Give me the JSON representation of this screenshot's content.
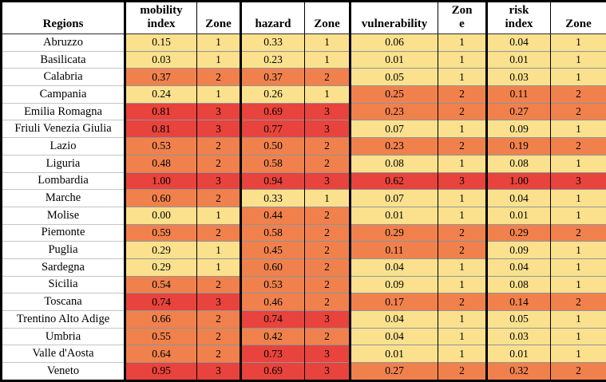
{
  "chart_data": {
    "type": "table",
    "columns": [
      "Regions",
      "mobility\nindex",
      "Zone",
      "hazard",
      "Zone",
      "vulnerability",
      "Zon\ne",
      "risk\nindex",
      "Zone"
    ],
    "zone_colors": {
      "1": "#FBE18D",
      "2": "#F0814D",
      "3": "#E8433C"
    },
    "rows": [
      {
        "region": "Abruzzo",
        "mobility": "0.15",
        "zone1": 1,
        "hazard": "0.33",
        "zone2": 1,
        "vulnerability": "0.06",
        "zone3": 1,
        "risk": "0.04",
        "zone4": 1
      },
      {
        "region": "Basilicata",
        "mobility": "0.03",
        "zone1": 1,
        "hazard": "0.23",
        "zone2": 1,
        "vulnerability": "0.01",
        "zone3": 1,
        "risk": "0.01",
        "zone4": 1
      },
      {
        "region": "Calabria",
        "mobility": "0.37",
        "zone1": 2,
        "hazard": "0.37",
        "zone2": 2,
        "vulnerability": "0.05",
        "zone3": 1,
        "risk": "0.03",
        "zone4": 1
      },
      {
        "region": "Campania",
        "mobility": "0.24",
        "zone1": 1,
        "hazard": "0.26",
        "zone2": 1,
        "vulnerability": "0.25",
        "zone3": 2,
        "risk": "0.11",
        "zone4": 2
      },
      {
        "region": "Emilia Romagna",
        "mobility": "0.81",
        "zone1": 3,
        "hazard": "0.69",
        "zone2": 3,
        "vulnerability": "0.23",
        "zone3": 2,
        "risk": "0.27",
        "zone4": 2
      },
      {
        "region": "Friuli Venezia Giulia",
        "mobility": "0.81",
        "zone1": 3,
        "hazard": "0.77",
        "zone2": 3,
        "vulnerability": "0.07",
        "zone3": 1,
        "risk": "0.09",
        "zone4": 1
      },
      {
        "region": "Lazio",
        "mobility": "0.53",
        "zone1": 2,
        "hazard": "0.50",
        "zone2": 2,
        "vulnerability": "0.23",
        "zone3": 2,
        "risk": "0.19",
        "zone4": 2
      },
      {
        "region": "Liguria",
        "mobility": "0.48",
        "zone1": 2,
        "hazard": "0.58",
        "zone2": 2,
        "vulnerability": "0.08",
        "zone3": 1,
        "risk": "0.08",
        "zone4": 1
      },
      {
        "region": "Lombardia",
        "mobility": "1.00",
        "zone1": 3,
        "hazard": "0.94",
        "zone2": 3,
        "vulnerability": "0.62",
        "zone3": 3,
        "risk": "1.00",
        "zone4": 3
      },
      {
        "region": "Marche",
        "mobility": "0.60",
        "zone1": 2,
        "hazard": "0.33",
        "zone2": 1,
        "vulnerability": "0.07",
        "zone3": 1,
        "risk": "0.04",
        "zone4": 1
      },
      {
        "region": "Molise",
        "mobility": "0.00",
        "zone1": 1,
        "hazard": "0.44",
        "zone2": 2,
        "vulnerability": "0.01",
        "zone3": 1,
        "risk": "0.01",
        "zone4": 1
      },
      {
        "region": "Piemonte",
        "mobility": "0.59",
        "zone1": 2,
        "hazard": "0.58",
        "zone2": 2,
        "vulnerability": "0.29",
        "zone3": 2,
        "risk": "0.29",
        "zone4": 2
      },
      {
        "region": "Puglia",
        "mobility": "0.29",
        "zone1": 1,
        "hazard": "0.45",
        "zone2": 2,
        "vulnerability": "0.11",
        "zone3": 2,
        "risk": "0.09",
        "zone4": 1
      },
      {
        "region": "Sardegna",
        "mobility": "0.29",
        "zone1": 1,
        "hazard": "0.60",
        "zone2": 2,
        "vulnerability": "0.04",
        "zone3": 1,
        "risk": "0.04",
        "zone4": 1
      },
      {
        "region": "Sicilia",
        "mobility": "0.54",
        "zone1": 2,
        "hazard": "0.53",
        "zone2": 2,
        "vulnerability": "0.09",
        "zone3": 1,
        "risk": "0.08",
        "zone4": 1
      },
      {
        "region": "Toscana",
        "mobility": "0.74",
        "zone1": 3,
        "hazard": "0.46",
        "zone2": 2,
        "vulnerability": "0.17",
        "zone3": 2,
        "risk": "0.14",
        "zone4": 2
      },
      {
        "region": "Trentino Alto Adige",
        "mobility": "0.66",
        "zone1": 2,
        "hazard": "0.74",
        "zone2": 3,
        "vulnerability": "0.04",
        "zone3": 1,
        "risk": "0.05",
        "zone4": 1
      },
      {
        "region": "Umbria",
        "mobility": "0.55",
        "zone1": 2,
        "hazard": "0.42",
        "zone2": 2,
        "vulnerability": "0.04",
        "zone3": 1,
        "risk": "0.03",
        "zone4": 1
      },
      {
        "region": "Valle d'Aosta",
        "mobility": "0.64",
        "zone1": 2,
        "hazard": "0.73",
        "zone2": 3,
        "vulnerability": "0.01",
        "zone3": 1,
        "risk": "0.01",
        "zone4": 1
      },
      {
        "region": "Veneto",
        "mobility": "0.95",
        "zone1": 3,
        "hazard": "0.69",
        "zone2": 3,
        "vulnerability": "0.27",
        "zone3": 2,
        "risk": "0.32",
        "zone4": 2
      }
    ]
  }
}
